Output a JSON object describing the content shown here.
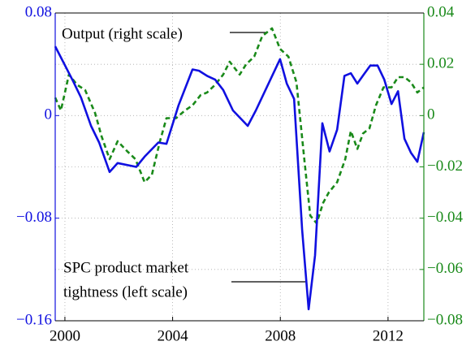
{
  "chart_data": {
    "type": "line",
    "xlim": [
      1999.64,
      2013.33
    ],
    "xticks": [
      2000,
      2004,
      2008,
      2012
    ],
    "ylim": [
      -0.16,
      0.08
    ],
    "yticks": [
      {
        "value": 0.08,
        "label": "0.08"
      },
      0,
      {
        "value": -0.08,
        "label": "−0.08"
      },
      {
        "value": -0.16,
        "label": "−0.16"
      }
    ],
    "y2lim": [
      -0.08,
      0.04
    ],
    "y2ticks": [
      {
        "value": 0.04,
        "label": "0.04"
      },
      {
        "value": 0.02,
        "label": "0.02"
      },
      0,
      {
        "value": -0.02,
        "label": "−0.02"
      },
      {
        "value": -0.04,
        "label": "−0.04"
      },
      {
        "value": -0.06,
        "label": "−0.06"
      },
      {
        "value": -0.08,
        "label": "−0.08"
      }
    ],
    "grid": true,
    "left_axis_color": "#1010e0",
    "right_axis_color": "#1a8a1a",
    "annotations": [
      "Output (right scale)",
      "SPC product market",
      "tightness (left scale)"
    ],
    "series": [
      {
        "color": "#1010e0",
        "dash": false,
        "axis": "y",
        "x": [
          1999.64,
          2000.3,
          2000.6,
          2000.97,
          2001.27,
          2001.66,
          2001.96,
          2002.65,
          2002.96,
          2003.47,
          2003.77,
          2004.22,
          2004.74,
          2004.98,
          2005.28,
          2005.58,
          2005.88,
          2006.24,
          2006.79,
          2007.09,
          2007.99,
          2008.24,
          2008.51,
          2008.81,
          2009.05,
          2009.29,
          2009.56,
          2009.83,
          2010.11,
          2010.38,
          2010.62,
          2010.86,
          2011.1,
          2011.34,
          2011.61,
          2011.86,
          2012.13,
          2012.37,
          2012.61,
          2012.85,
          2013.09,
          2013.33
        ],
        "values": [
          0.054,
          0.027,
          0.014,
          -0.008,
          -0.021,
          -0.044,
          -0.037,
          -0.04,
          -0.032,
          -0.021,
          -0.022,
          0.008,
          0.036,
          0.035,
          0.031,
          0.028,
          0.02,
          0.004,
          -0.008,
          0.004,
          0.044,
          0.025,
          0.013,
          -0.089,
          -0.151,
          -0.109,
          -0.006,
          -0.028,
          -0.011,
          0.031,
          0.033,
          0.025,
          0.032,
          0.039,
          0.039,
          0.028,
          0.009,
          0.019,
          -0.018,
          -0.029,
          -0.036,
          -0.013
        ]
      },
      {
        "color": "#1a8a1a",
        "dash": true,
        "axis": "y2",
        "x": [
          1999.64,
          1999.85,
          2000.15,
          2000.45,
          2000.75,
          2001.12,
          2001.36,
          2001.66,
          2001.96,
          2002.32,
          2002.62,
          2002.96,
          2003.23,
          2003.53,
          2003.77,
          2004.13,
          2004.46,
          2004.74,
          2005.04,
          2005.28,
          2005.58,
          2005.88,
          2006.12,
          2006.49,
          2006.73,
          2007.03,
          2007.33,
          2007.69,
          2007.99,
          2008.3,
          2008.6,
          2008.9,
          2009.11,
          2009.35,
          2009.59,
          2009.8,
          2010.11,
          2010.41,
          2010.62,
          2010.86,
          2011.07,
          2011.31,
          2011.55,
          2011.83,
          2012.13,
          2012.37,
          2012.61,
          2012.85,
          2013.09,
          2013.33
        ],
        "values": [
          0.007,
          0.002,
          0.016,
          0.012,
          0.01,
          0.001,
          -0.008,
          -0.017,
          -0.01,
          -0.014,
          -0.017,
          -0.026,
          -0.023,
          -0.01,
          -0.001,
          -0.001,
          0.002,
          0.004,
          0.008,
          0.009,
          0.012,
          0.016,
          0.021,
          0.016,
          0.02,
          0.023,
          0.031,
          0.034,
          0.026,
          0.023,
          0.013,
          -0.018,
          -0.039,
          -0.042,
          -0.034,
          -0.03,
          -0.026,
          -0.017,
          -0.006,
          -0.013,
          -0.007,
          -0.005,
          0.004,
          0.011,
          0.011,
          0.015,
          0.015,
          0.013,
          0.009,
          0.011
        ]
      }
    ]
  }
}
